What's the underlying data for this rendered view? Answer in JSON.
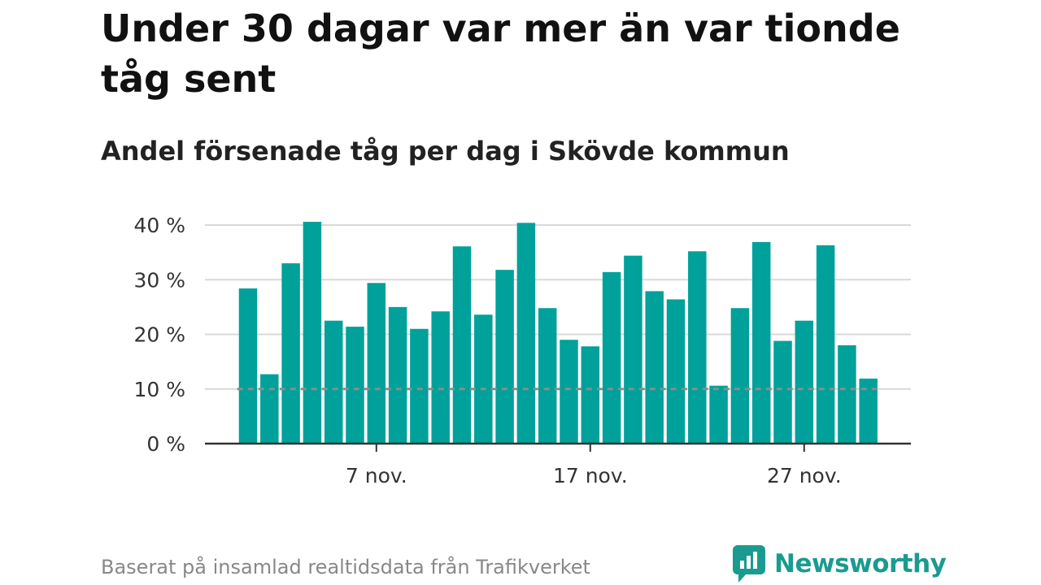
{
  "title": "Under 30 dagar var mer än var tionde tåg sent",
  "subtitle": "Andel försenade tåg per dag i Skövde kommun",
  "source": "Baserat på insamlad realtidsdata från Trafikverket",
  "brand": {
    "name": "Newsworthy",
    "icon": "newsworthy-logo-icon"
  },
  "colors": {
    "bar": "#00a19a",
    "reference_line": "#8c8c8c",
    "grid": "#d9d9d9",
    "axis": "#333333"
  },
  "chart_data": {
    "type": "bar",
    "x": [
      "1 nov.",
      "2 nov.",
      "3 nov.",
      "4 nov.",
      "5 nov.",
      "6 nov.",
      "7 nov.",
      "8 nov.",
      "9 nov.",
      "10 nov.",
      "11 nov.",
      "12 nov.",
      "13 nov.",
      "14 nov.",
      "15 nov.",
      "16 nov.",
      "17 nov.",
      "18 nov.",
      "19 nov.",
      "20 nov.",
      "21 nov.",
      "22 nov.",
      "23 nov.",
      "24 nov.",
      "25 nov.",
      "26 nov.",
      "27 nov.",
      "28 nov.",
      "29 nov.",
      "30 nov."
    ],
    "values": [
      28.4,
      12.7,
      33.0,
      40.6,
      22.5,
      21.4,
      29.4,
      25.0,
      21.0,
      24.2,
      36.1,
      23.6,
      31.8,
      40.4,
      24.8,
      19.0,
      17.8,
      31.4,
      34.4,
      27.9,
      26.4,
      35.2,
      10.6,
      24.8,
      36.9,
      18.8,
      22.5,
      36.3,
      18.0,
      11.9
    ],
    "x_ticks": [
      "7 nov.",
      "17 nov.",
      "27 nov."
    ],
    "y_ticks": [
      "0 %",
      "10 %",
      "20 %",
      "30 %",
      "40 %"
    ],
    "ylim": [
      0,
      40
    ],
    "reference_line": 10,
    "grid": true
  }
}
